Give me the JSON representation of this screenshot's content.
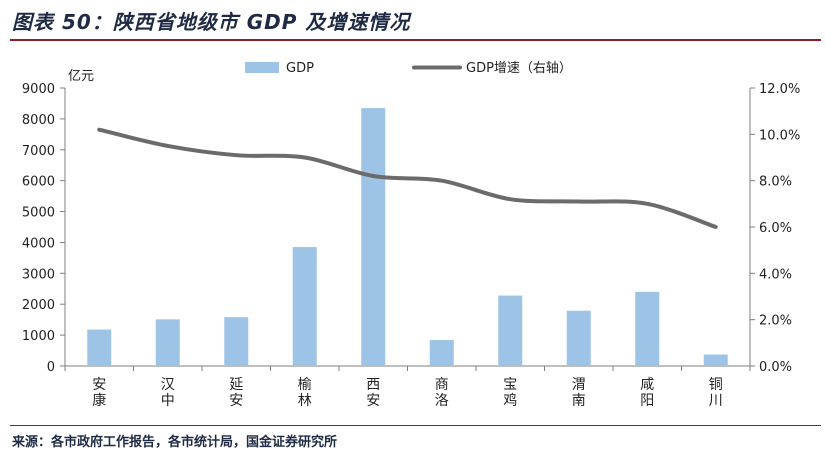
{
  "title": "图表 50：陕西省地级市 GDP 及增速情况",
  "source": "来源：各市政府工作报告，各市统计局，国金证券研究所",
  "chart_data": {
    "type": "bar",
    "categories": [
      [
        "安",
        "康"
      ],
      [
        "汉",
        "中"
      ],
      [
        "延",
        "安"
      ],
      [
        "榆",
        "林"
      ],
      [
        "西",
        "安"
      ],
      [
        "商",
        "洛"
      ],
      [
        "宝",
        "鸡"
      ],
      [
        "渭",
        "南"
      ],
      [
        "咸",
        "阳"
      ],
      [
        "铜",
        "川"
      ]
    ],
    "left_axis": {
      "unit_label": "亿元",
      "ylim": [
        0,
        9000
      ],
      "ticks": [
        "0",
        "1000",
        "2000",
        "3000",
        "4000",
        "5000",
        "6000",
        "7000",
        "8000",
        "9000"
      ]
    },
    "right_axis": {
      "ylim": [
        0,
        12
      ],
      "ticks": [
        "0.0%",
        "2.0%",
        "4.0%",
        "6.0%",
        "8.0%",
        "10.0%",
        "12.0%"
      ]
    },
    "series": [
      {
        "name": "GDP",
        "type": "bar",
        "axis": "left",
        "color": "#9dc3e6",
        "values": [
          1180,
          1510,
          1580,
          3850,
          8350,
          840,
          2280,
          1790,
          2400,
          370
        ]
      },
      {
        "name": "GDP增速（右轴）",
        "type": "line",
        "axis": "right",
        "color": "#6b6b6b",
        "values": [
          10.2,
          9.5,
          9.1,
          9.0,
          8.2,
          8.0,
          7.2,
          7.1,
          7.0,
          6.0
        ]
      }
    ],
    "grid": false,
    "legend": "top-center"
  }
}
